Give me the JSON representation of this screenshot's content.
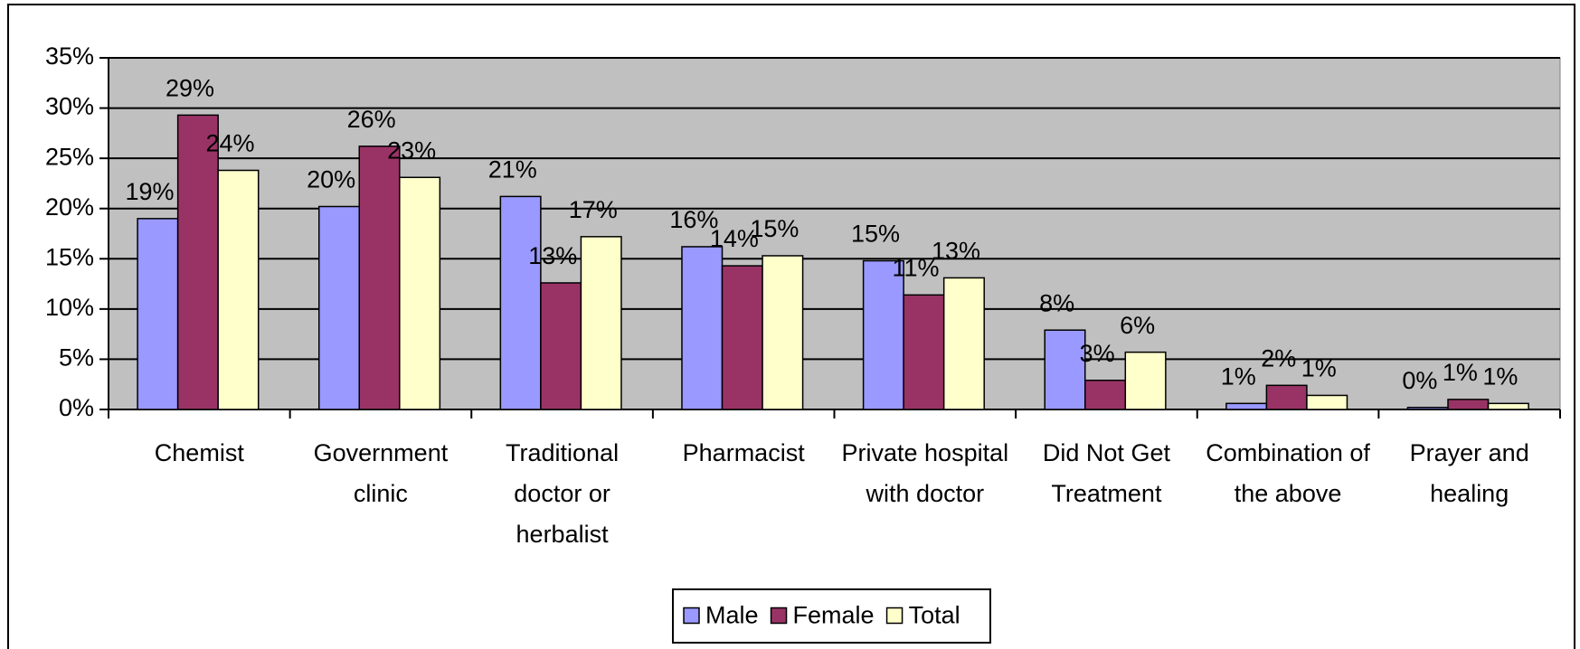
{
  "chart_data": {
    "type": "bar",
    "categories": [
      "Chemist",
      "Government clinic",
      "Traditional doctor or herbalist",
      "Pharmacist",
      "Private hospital with doctor",
      "Did Not Get Treatment",
      "Combination of the above",
      "Prayer and healing"
    ],
    "series": [
      {
        "name": "Male",
        "color": "#9999ff",
        "values": [
          19.0,
          20.2,
          21.2,
          16.2,
          14.8,
          7.9,
          0.6,
          0.2
        ],
        "value_labels": [
          "19%",
          "20%",
          "21%",
          "16%",
          "15%",
          "8%",
          "1%",
          "0%"
        ]
      },
      {
        "name": "Female",
        "color": "#993366",
        "values": [
          29.3,
          26.2,
          12.6,
          14.3,
          11.4,
          2.9,
          2.4,
          1.0
        ],
        "value_labels": [
          "29%",
          "26%",
          "13%",
          "14%",
          "11%",
          "3%",
          "2%",
          "1%"
        ]
      },
      {
        "name": "Total",
        "color": "#ffffcc",
        "values": [
          23.8,
          23.1,
          17.2,
          15.3,
          13.1,
          5.7,
          1.4,
          0.6
        ],
        "value_labels": [
          "24%",
          "23%",
          "17%",
          "15%",
          "13%",
          "6%",
          "1%",
          "1%"
        ]
      }
    ],
    "ylim": [
      0,
      35
    ],
    "yticks": [
      {
        "value": 0,
        "label": "0%"
      },
      {
        "value": 5,
        "label": "5%"
      },
      {
        "value": 10,
        "label": "10%"
      },
      {
        "value": 15,
        "label": "15%"
      },
      {
        "value": 20,
        "label": "20%"
      },
      {
        "value": 25,
        "label": "25%"
      },
      {
        "value": 30,
        "label": "30%"
      },
      {
        "value": 35,
        "label": "35%"
      }
    ],
    "grid": true,
    "plot_background": "#c0c0c0",
    "legend": "bottom"
  }
}
